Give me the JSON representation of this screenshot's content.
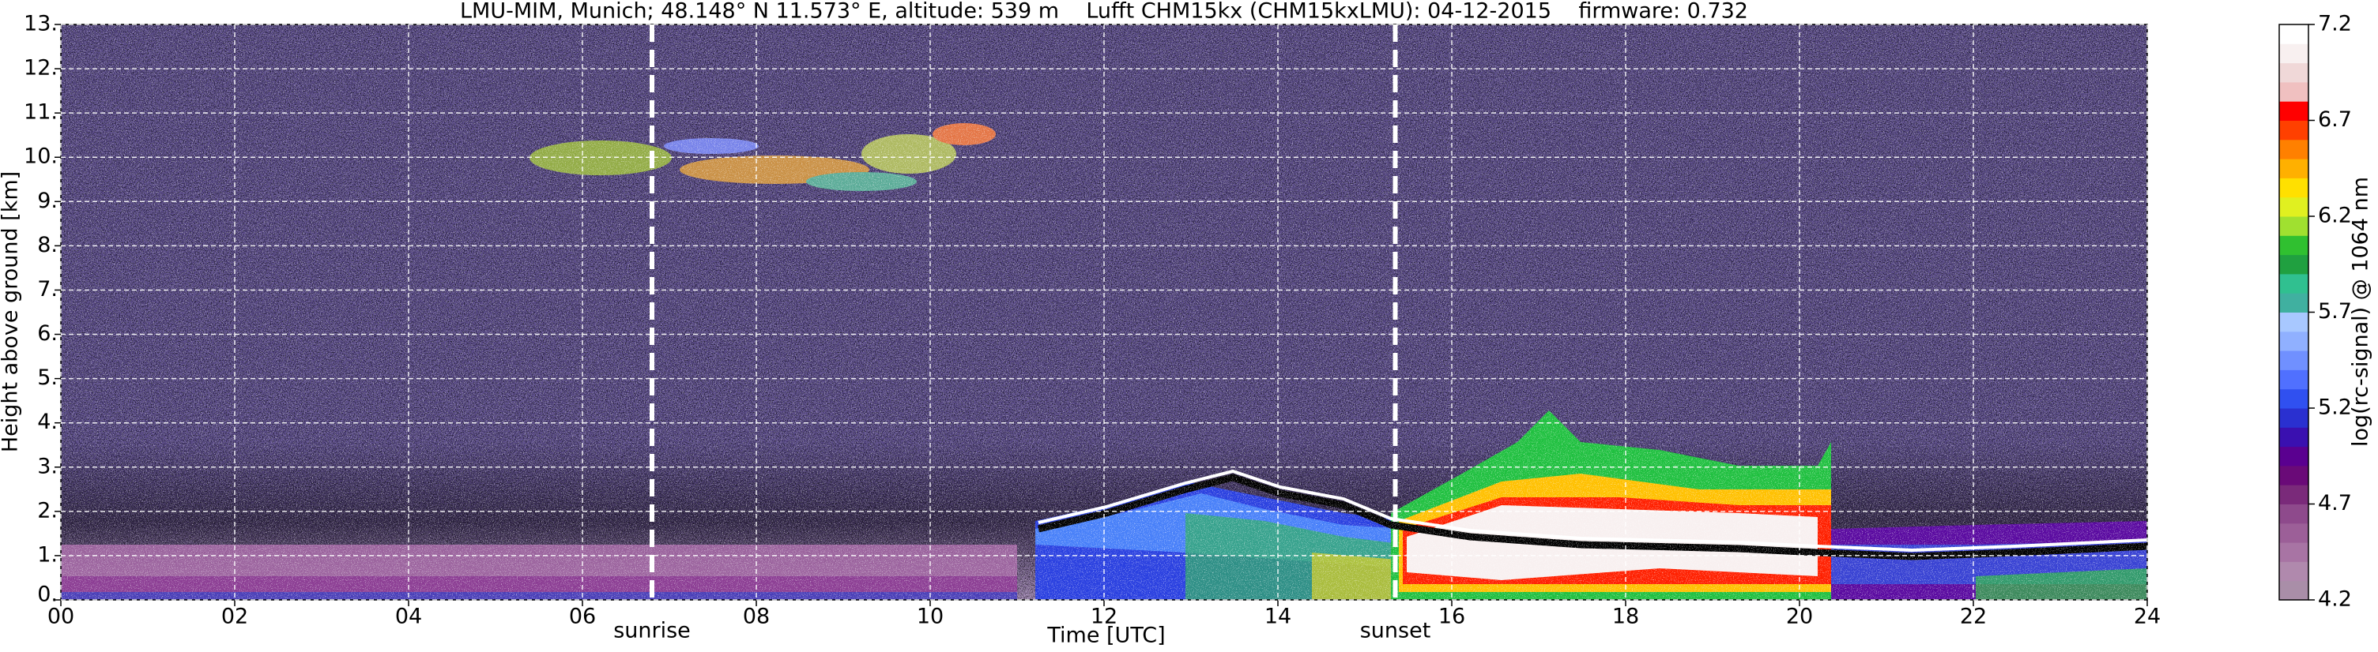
{
  "chart_data": {
    "type": "heatmap",
    "title": "LMU-MIM, Munich; 48.148° N 11.573° E, altitude: 539 m    Lufft CHM15kx (CHM15kxLMU): 04-12-2015    firmware: 0.732",
    "xlabel": "Time [UTC]",
    "ylabel": "Height above ground [km]",
    "colorbar_label": "log(rc-signal) @ 1064 nm",
    "xlim": [
      0,
      24
    ],
    "xticks": [
      {
        "value": 0,
        "label": "00"
      },
      {
        "value": 2,
        "label": "02"
      },
      {
        "value": 4,
        "label": "04"
      },
      {
        "value": 6,
        "label": "06"
      },
      {
        "value": 8,
        "label": "08"
      },
      {
        "value": 10,
        "label": "10"
      },
      {
        "value": 12,
        "label": "12"
      },
      {
        "value": 14,
        "label": "14"
      },
      {
        "value": 16,
        "label": "16"
      },
      {
        "value": 18,
        "label": "18"
      },
      {
        "value": 20,
        "label": "20"
      },
      {
        "value": 22,
        "label": "22"
      },
      {
        "value": 24,
        "label": "24"
      }
    ],
    "ylim": [
      0,
      13
    ],
    "yticks": [
      {
        "value": 0,
        "label": "0."
      },
      {
        "value": 1,
        "label": "1."
      },
      {
        "value": 2,
        "label": "2."
      },
      {
        "value": 3,
        "label": "3."
      },
      {
        "value": 4,
        "label": "4."
      },
      {
        "value": 5,
        "label": "5."
      },
      {
        "value": 6,
        "label": "6."
      },
      {
        "value": 7,
        "label": "7."
      },
      {
        "value": 8,
        "label": "8."
      },
      {
        "value": 9,
        "label": "9."
      },
      {
        "value": 10,
        "label": "10."
      },
      {
        "value": 11,
        "label": "11."
      },
      {
        "value": 12,
        "label": "12."
      },
      {
        "value": 13,
        "label": "13."
      }
    ],
    "clim": [
      4.2,
      7.2
    ],
    "cticks": [
      4.2,
      4.7,
      5.2,
      5.7,
      6.2,
      6.7,
      7.2
    ],
    "colormap": [
      "#a98ea8",
      "#b089ad",
      "#a874a4",
      "#9c5f98",
      "#8e4a8c",
      "#7a2a7a",
      "#6a0a78",
      "#5a0090",
      "#3a10b0",
      "#2a30d0",
      "#3050f0",
      "#5070ff",
      "#7090ff",
      "#90b0ff",
      "#a8c8ff",
      "#40b0a0",
      "#30c090",
      "#20a040",
      "#30c030",
      "#a0e030",
      "#e0f020",
      "#ffe000",
      "#ffb000",
      "#ff8000",
      "#ff4000",
      "#ff0000",
      "#f0c0c0",
      "#f0d8d8",
      "#f8f0f0",
      "#ffffff"
    ],
    "grid": true,
    "annotations": [
      {
        "text": "sunrise",
        "x": 6.8
      },
      {
        "text": "sunset",
        "x": 15.35
      }
    ]
  }
}
